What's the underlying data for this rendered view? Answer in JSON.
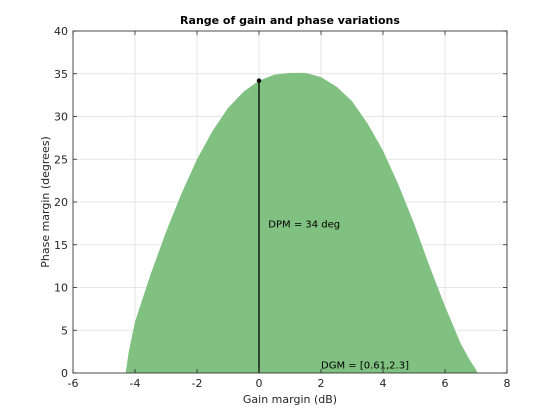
{
  "chart_data": {
    "type": "area",
    "title": "Range of gain and phase variations",
    "xlabel": "Gain margin (dB)",
    "ylabel": "Phase margin (degrees)",
    "xlim": [
      -6,
      8
    ],
    "ylim": [
      0,
      40
    ],
    "xticks": [
      -6,
      -4,
      -2,
      0,
      2,
      4,
      6,
      8
    ],
    "yticks": [
      0,
      5,
      10,
      15,
      20,
      25,
      30,
      35,
      40
    ],
    "grid": true,
    "fill_color": "#80c080",
    "region": {
      "x": [
        -4.3,
        -4.2,
        -4.0,
        -3.5,
        -3.0,
        -2.5,
        -2.0,
        -1.5,
        -1.0,
        -0.5,
        0.0,
        0.5,
        1.0,
        1.5,
        2.0,
        2.5,
        3.0,
        3.5,
        4.0,
        4.5,
        5.0,
        5.5,
        6.0,
        6.5,
        6.8,
        7.0,
        7.05
      ],
      "y": [
        0.0,
        2.5,
        6.0,
        11.5,
        16.5,
        21.0,
        25.0,
        28.3,
        31.0,
        32.9,
        34.2,
        34.9,
        35.1,
        35.1,
        34.6,
        33.5,
        31.8,
        29.2,
        26.0,
        22.0,
        17.5,
        12.5,
        7.8,
        3.5,
        1.5,
        0.4,
        0.0
      ]
    },
    "marker": {
      "x": 0,
      "y": 34.2
    },
    "annotations": [
      {
        "text": "DPM = 34 deg",
        "x": 0.3,
        "y": 17.5
      },
      {
        "text": "DGM = [0.61,2.3]",
        "x": 2.0,
        "y": 1.0
      }
    ]
  }
}
